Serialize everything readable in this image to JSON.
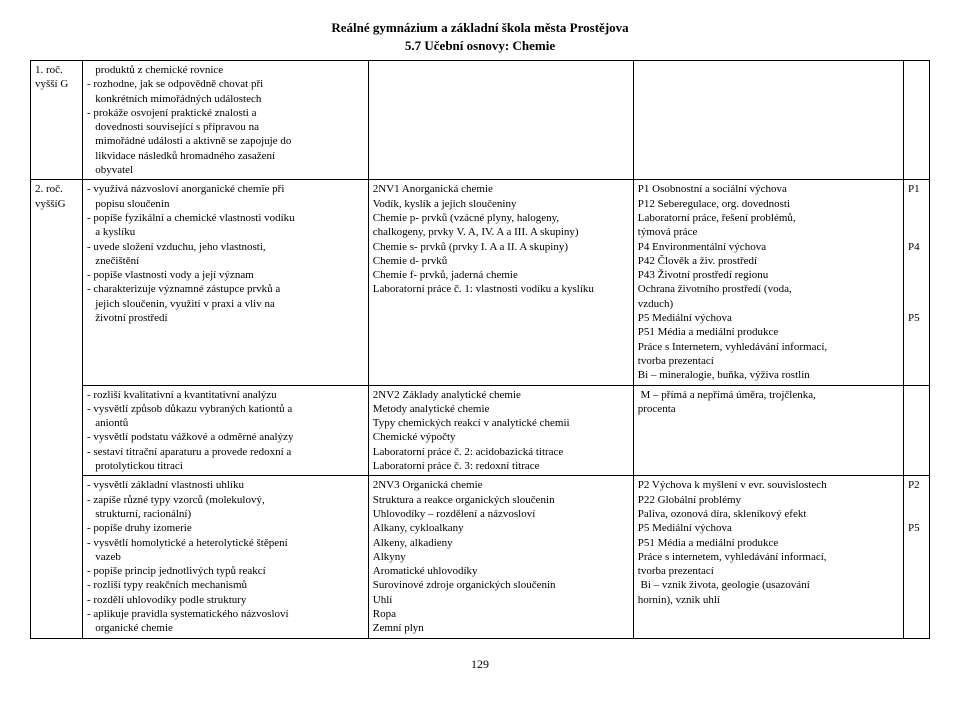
{
  "header": {
    "line1": "Reálné gymnázium a základní škola města Prostějova",
    "line2": "5.7 Učební osnovy: Chemie"
  },
  "rows": [
    {
      "c1": "1. roč.\nvyšší G",
      "c2": "   produktů z chemické rovnice\n- rozhodne, jak se odpovědně chovat při\n   konkrétních mimořádných událostech\n- prokáže osvojení praktické znalosti a\n   dovednosti související s přípravou na\n   mimořádné události a aktivně se zapojuje do\n   likvidace následků hromadného zasažení\n   obyvatel",
      "c3": "",
      "c4": "",
      "c5": ""
    },
    {
      "c1": "2. roč.\nvyššíG",
      "c2": "- využívá názvosloví anorganické chemie při\n   popisu sloučenin\n- popíše fyzikální a chemické vlastnosti vodíku\n   a kyslíku\n- uvede složení vzduchu, jeho vlastnosti,\n   znečištění\n- popíše vlastnosti vody a její význam\n- charakterizuje významné zástupce prvků a\n   jejich sloučenin, využití v praxi a vliv na\n   životní prostředí",
      "c3": "2NV1 Anorganická chemie\nVodík, kyslík a jejich sloučeniny\nChemie p- prvků (vzácné plyny, halogeny,\nchalkogeny, prvky V. A, IV. A a III. A skupiny)\nChemie s- prvků (prvky I. A a II. A skupiny)\nChemie d- prvků\nChemie f- prvků, jaderná chemie\nLaboratorní práce č. 1: vlastnosti vodíku a kyslíku",
      "c4": "P1 Osobnostní a sociální výchova\nP12 Seberegulace, org. dovednosti\nLaboratorní práce, řešení problémů,\ntýmová práce\nP4 Environmentální výchova\nP42 Člověk a živ. prostředí\nP43 Životní prostředí regionu\nOchrana životního prostředí (voda,\nvzduch)\nP5 Mediální výchova\nP51 Média a mediální produkce\nPráce s Internetem, vyhledávání informací,\ntvorba prezentací\nBi – mineralogie, buňka, výživa rostlin",
      "c5": "P1\n\n\n\nP4\n\n\n\n\nP5"
    },
    {
      "c1": "",
      "c2": "- rozliší kvalitativní a kvantitativní analýzu\n- vysvětlí způsob důkazu vybraných kationtů a\n   aniontů\n- vysvětlí podstatu vážkové a odměrné analýzy\n- sestaví titrační aparaturu a provede redoxní a\n   protolytickou titraci",
      "c3": "2NV2 Základy analytické chemie\nMetody analytické chemie\nTypy chemických reakcí v analytické chemii\nChemické výpočty\nLaboratorní práce č. 2: acidobazická titrace\nLaboratorní práce č. 3: redoxní titrace",
      "c4": " M – přímá a nepřímá úměra, trojčlenka,\nprocenta",
      "c5": ""
    },
    {
      "c1": "",
      "c2": "- vysvětlí základní vlastnosti uhlíku\n- zapíše různé typy vzorců (molekulový,\n   strukturní, racionální)\n- popíše druhy izomerie\n- vysvětlí homolytické a heterolytické štěpení\n   vazeb\n- popíše princip jednotlivých typů reakcí\n- rozliší typy reakčních mechanismů\n- rozdělí uhlovodíky podle struktury\n- aplikuje pravidla systematického názvosloví\n   organické chemie",
      "c3": "2NV3 Organická chemie\nStruktura a reakce organických sloučenin\nUhlovodíky – rozdělení a názvosloví\nAlkany, cykloalkany\nAlkeny, alkadieny\nAlkyny\nAromatické uhlovodíky\nSurovinové zdroje organických sloučenin\nUhlí\nRopa\nZemní plyn",
      "c4": "P2 Výchova k myšlení v evr. souvislostech\nP22 Globální problémy\nPaliva, ozonová díra, skleníkový efekt\nP5 Mediální výchova\nP51 Média a mediální produkce\nPráce s internetem, vyhledávání informací,\ntvorba prezentací\n Bi – vznik života, geologie (usazování\nhornin), vznik uhlí",
      "c5": "P2\n\n\nP5"
    }
  ],
  "pageNumber": "129"
}
